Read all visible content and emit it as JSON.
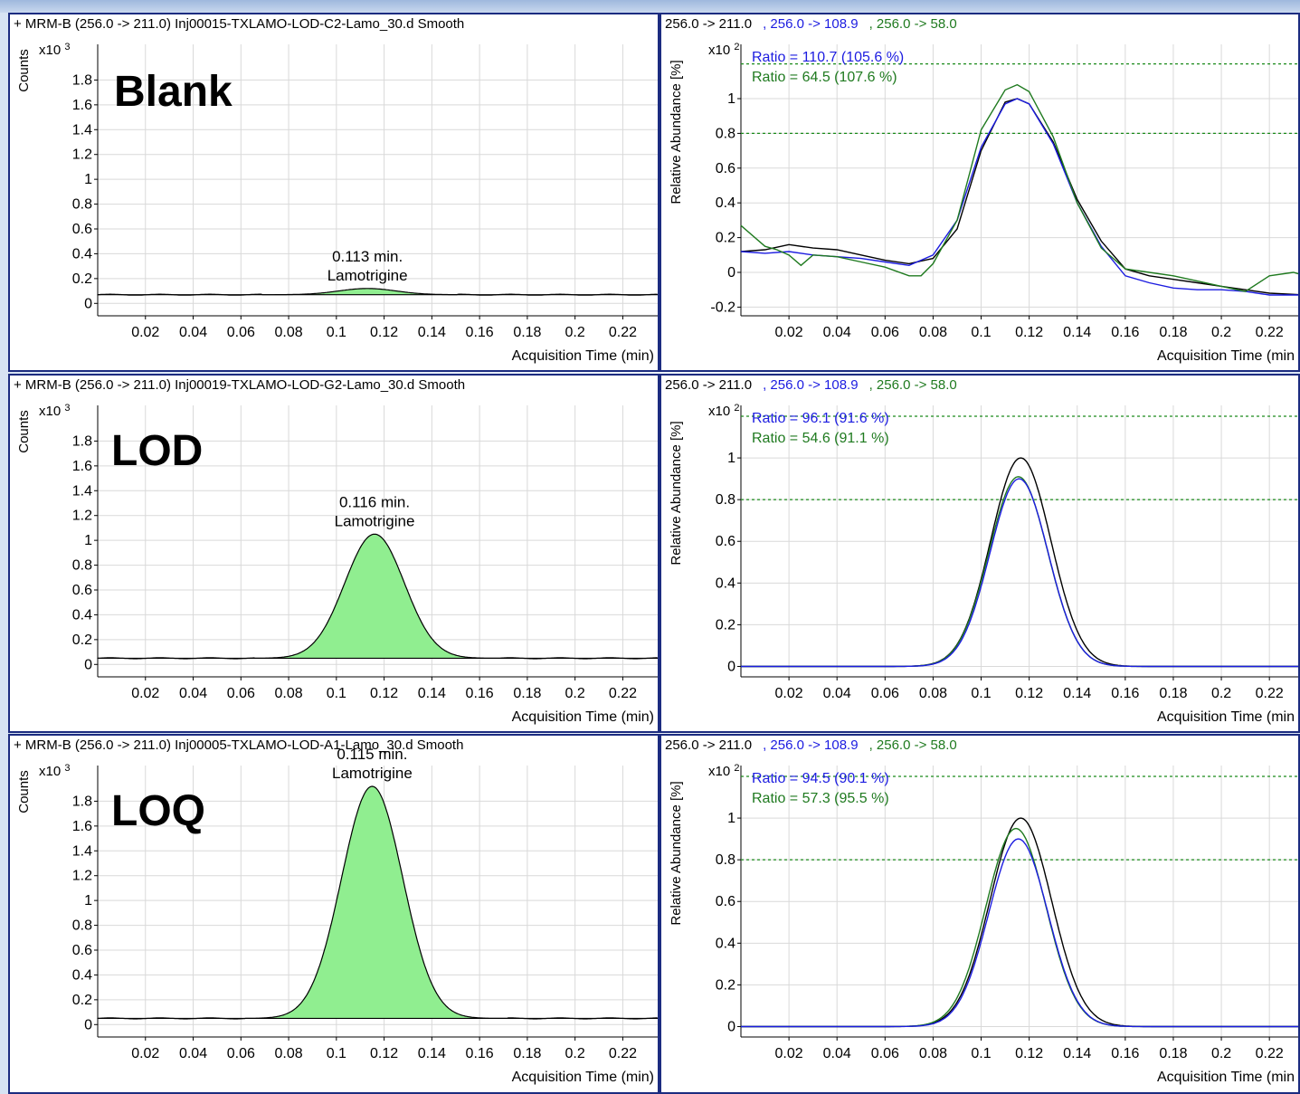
{
  "colors": {
    "panel_border": "#1c2c80",
    "grid": "#d9d9d9",
    "fill_green": "#90ee90",
    "trace_black": "#000000",
    "trace_blue": "#1c1ce0",
    "trace_green": "#1f7a1f",
    "ratio_line": "#1a8a1a"
  },
  "chart_data": [
    {
      "type": "area",
      "sample_label": "Blank",
      "title": "+ MRM-B (256.0 -> 211.0) Inj00015-TXLAMO-LOD-C2-Lamo_30.d  Smooth",
      "ylabel": "Counts",
      "y_multiplier": "x10 3",
      "xlabel": "Acquisition Time (min)",
      "xlim": [
        0.0,
        0.235
      ],
      "ylim": [
        -0.1,
        2.0
      ],
      "x_ticks": [
        0.02,
        0.04,
        0.06,
        0.08,
        0.1,
        0.12,
        0.14,
        0.16,
        0.18,
        0.2,
        0.22
      ],
      "x_tick_labels": [
        "0.02",
        "0.04",
        "0.06",
        "0.08",
        "0.1",
        "0.12",
        "0.14",
        "0.16",
        "0.18",
        "0.2",
        "0.22"
      ],
      "y_ticks": [
        0,
        0.2,
        0.4,
        0.6,
        0.8,
        1,
        1.2,
        1.4,
        1.6,
        1.8
      ],
      "y_tick_labels": [
        "0",
        "0.2",
        "0.4",
        "0.6",
        "0.8",
        "1",
        "1.2",
        "1.4",
        "1.6",
        "1.8"
      ],
      "baseline": 0.07,
      "peak": {
        "rt": 0.113,
        "apex": 0.12,
        "start": 0.075,
        "end": 0.145,
        "sigma": 0.012
      },
      "annotation": [
        "0.113 min.",
        "Lamotrigine"
      ]
    },
    {
      "type": "line",
      "title_series": [
        "256.0 -> 211.0",
        ", 256.0 -> 108.9",
        ", 256.0 -> 58.0"
      ],
      "ylabel": "Relative Abundance [%]",
      "y_multiplier": "x10 2",
      "xlabel": "Acquisition Time (min",
      "xlim": [
        0.0,
        0.235
      ],
      "ylim": [
        -0.25,
        1.25
      ],
      "x_ticks": [
        0.02,
        0.04,
        0.06,
        0.08,
        0.1,
        0.12,
        0.14,
        0.16,
        0.18,
        0.2,
        0.22
      ],
      "x_tick_labels": [
        "0.02",
        "0.04",
        "0.06",
        "0.08",
        "0.1",
        "0.12",
        "0.14",
        "0.16",
        "0.18",
        "0.2",
        "0.22"
      ],
      "y_ticks": [
        -0.2,
        0,
        0.2,
        0.4,
        0.6,
        0.8,
        1
      ],
      "y_tick_labels": [
        "-0.2",
        "0",
        "0.2",
        "0.4",
        "0.6",
        "0.8",
        "1"
      ],
      "ratio_lines": [
        1.2,
        0.8
      ],
      "ratios": [
        "Ratio = 110.7 (105.6 %)",
        "Ratio = 64.5 (107.6 %)"
      ],
      "series": [
        {
          "color": "#000000",
          "x": [
            0,
            0.01,
            0.02,
            0.03,
            0.04,
            0.05,
            0.06,
            0.07,
            0.08,
            0.09,
            0.1,
            0.11,
            0.115,
            0.12,
            0.13,
            0.14,
            0.15,
            0.16,
            0.17,
            0.18,
            0.19,
            0.2,
            0.21,
            0.22,
            0.235
          ],
          "y": [
            0.12,
            0.13,
            0.16,
            0.14,
            0.13,
            0.1,
            0.07,
            0.05,
            0.08,
            0.25,
            0.7,
            0.98,
            1.0,
            0.97,
            0.75,
            0.42,
            0.18,
            0.02,
            -0.02,
            -0.04,
            -0.06,
            -0.08,
            -0.1,
            -0.12,
            -0.13
          ]
        },
        {
          "color": "#1c1ce0",
          "x": [
            0,
            0.01,
            0.02,
            0.03,
            0.04,
            0.05,
            0.06,
            0.07,
            0.08,
            0.09,
            0.1,
            0.11,
            0.115,
            0.12,
            0.13,
            0.14,
            0.15,
            0.16,
            0.17,
            0.18,
            0.19,
            0.2,
            0.21,
            0.22,
            0.235
          ],
          "y": [
            0.12,
            0.11,
            0.12,
            0.1,
            0.09,
            0.08,
            0.06,
            0.04,
            0.1,
            0.3,
            0.72,
            0.97,
            1.0,
            0.97,
            0.74,
            0.4,
            0.15,
            -0.02,
            -0.06,
            -0.09,
            -0.1,
            -0.1,
            -0.11,
            -0.13,
            -0.13
          ]
        },
        {
          "color": "#1f7a1f",
          "x": [
            0,
            0.01,
            0.015,
            0.02,
            0.025,
            0.03,
            0.04,
            0.05,
            0.06,
            0.07,
            0.075,
            0.08,
            0.09,
            0.1,
            0.11,
            0.115,
            0.12,
            0.13,
            0.14,
            0.15,
            0.16,
            0.17,
            0.18,
            0.19,
            0.2,
            0.21,
            0.22,
            0.23,
            0.235
          ],
          "y": [
            0.27,
            0.15,
            0.13,
            0.1,
            0.04,
            0.1,
            0.09,
            0.06,
            0.03,
            -0.02,
            -0.02,
            0.05,
            0.3,
            0.82,
            1.05,
            1.08,
            1.04,
            0.78,
            0.4,
            0.14,
            0.02,
            0.0,
            -0.02,
            -0.05,
            -0.08,
            -0.11,
            -0.02,
            0.0,
            -0.02
          ]
        }
      ]
    },
    {
      "type": "area",
      "sample_label": "LOD",
      "title": "+ MRM-B (256.0 -> 211.0) Inj00019-TXLAMO-LOD-G2-Lamo_30.d  Smooth",
      "ylabel": "Counts",
      "y_multiplier": "x10 3",
      "xlabel": "Acquisition Time (min)",
      "xlim": [
        0.0,
        0.235
      ],
      "ylim": [
        -0.1,
        2.0
      ],
      "x_ticks": [
        0.02,
        0.04,
        0.06,
        0.08,
        0.1,
        0.12,
        0.14,
        0.16,
        0.18,
        0.2,
        0.22
      ],
      "x_tick_labels": [
        "0.02",
        "0.04",
        "0.06",
        "0.08",
        "0.1",
        "0.12",
        "0.14",
        "0.16",
        "0.18",
        "0.2",
        "0.22"
      ],
      "y_ticks": [
        0,
        0.2,
        0.4,
        0.6,
        0.8,
        1,
        1.2,
        1.4,
        1.6,
        1.8
      ],
      "y_tick_labels": [
        "0",
        "0.2",
        "0.4",
        "0.6",
        "0.8",
        "1",
        "1.2",
        "1.4",
        "1.6",
        "1.8"
      ],
      "baseline": 0.05,
      "peak": {
        "rt": 0.116,
        "apex": 1.05,
        "start": 0.072,
        "end": 0.163,
        "sigma": 0.0125
      },
      "annotation": [
        "0.116 min.",
        "Lamotrigine"
      ]
    },
    {
      "type": "line",
      "title_series": [
        "256.0 -> 211.0",
        ", 256.0 -> 108.9",
        ", 256.0 -> 58.0"
      ],
      "ylabel": "Relative Abundance [%]",
      "y_multiplier": "x10 2",
      "xlabel": "Acquisition Time (min",
      "xlim": [
        0.0,
        0.235
      ],
      "ylim": [
        -0.05,
        1.2
      ],
      "x_ticks": [
        0.02,
        0.04,
        0.06,
        0.08,
        0.1,
        0.12,
        0.14,
        0.16,
        0.18,
        0.2,
        0.22
      ],
      "x_tick_labels": [
        "0.02",
        "0.04",
        "0.06",
        "0.08",
        "0.1",
        "0.12",
        "0.14",
        "0.16",
        "0.18",
        "0.2",
        "0.22"
      ],
      "y_ticks": [
        0,
        0.2,
        0.4,
        0.6,
        0.8,
        1
      ],
      "y_tick_labels": [
        "0",
        "0.2",
        "0.4",
        "0.6",
        "0.8",
        "1"
      ],
      "ratio_lines": [
        1.2,
        0.8
      ],
      "ratios": [
        "Ratio = 96.1 (91.6 %)",
        "Ratio = 54.6 (91.1 %)"
      ],
      "series": [
        {
          "color": "#000000",
          "peak": {
            "center": 0.1165,
            "height": 1.0,
            "sigma": 0.0125,
            "baseline": 0.0
          }
        },
        {
          "color": "#1f7a1f",
          "peak": {
            "center": 0.1155,
            "height": 0.91,
            "sigma": 0.0122,
            "baseline": 0.0
          }
        },
        {
          "color": "#1c1ce0",
          "peak": {
            "center": 0.1158,
            "height": 0.9,
            "sigma": 0.0121,
            "baseline": 0.0
          }
        }
      ]
    },
    {
      "type": "area",
      "sample_label": "LOQ",
      "title": "+ MRM-B (256.0 -> 211.0) Inj00005-TXLAMO-LOD-A1-Lamo_30.d  Smooth",
      "ylabel": "Counts",
      "y_multiplier": "x10 3",
      "xlabel": "Acquisition Time (min)",
      "xlim": [
        0.0,
        0.235
      ],
      "ylim": [
        -0.1,
        2.0
      ],
      "x_ticks": [
        0.02,
        0.04,
        0.06,
        0.08,
        0.1,
        0.12,
        0.14,
        0.16,
        0.18,
        0.2,
        0.22
      ],
      "x_tick_labels": [
        "0.02",
        "0.04",
        "0.06",
        "0.08",
        "0.1",
        "0.12",
        "0.14",
        "0.16",
        "0.18",
        "0.2",
        "0.22"
      ],
      "y_ticks": [
        0,
        0.2,
        0.4,
        0.6,
        0.8,
        1,
        1.2,
        1.4,
        1.6,
        1.8
      ],
      "y_tick_labels": [
        "0",
        "0.2",
        "0.4",
        "0.6",
        "0.8",
        "1",
        "1.2",
        "1.4",
        "1.6",
        "1.8"
      ],
      "baseline": 0.05,
      "peak": {
        "rt": 0.115,
        "apex": 1.92,
        "start": 0.068,
        "end": 0.166,
        "sigma": 0.0128
      },
      "annotation": [
        "0.115 min.",
        "Lamotrigine"
      ]
    },
    {
      "type": "line",
      "title_series": [
        "256.0 -> 211.0",
        ", 256.0 -> 108.9",
        ", 256.0 -> 58.0"
      ],
      "ylabel": "Relative Abundance [%]",
      "y_multiplier": "x10 2",
      "xlabel": "Acquisition Time (min",
      "xlim": [
        0.0,
        0.235
      ],
      "ylim": [
        -0.05,
        1.2
      ],
      "x_ticks": [
        0.02,
        0.04,
        0.06,
        0.08,
        0.1,
        0.12,
        0.14,
        0.16,
        0.18,
        0.2,
        0.22
      ],
      "x_tick_labels": [
        "0.02",
        "0.04",
        "0.06",
        "0.08",
        "0.1",
        "0.12",
        "0.14",
        "0.16",
        "0.18",
        "0.2",
        "0.22"
      ],
      "y_ticks": [
        0,
        0.2,
        0.4,
        0.6,
        0.8,
        1
      ],
      "y_tick_labels": [
        "0",
        "0.2",
        "0.4",
        "0.6",
        "0.8",
        "1"
      ],
      "ratio_lines": [
        1.2,
        0.8
      ],
      "ratios": [
        "Ratio = 94.5 (90.1 %)",
        "Ratio = 57.3 (95.5 %)"
      ],
      "series": [
        {
          "color": "#000000",
          "peak": {
            "center": 0.1165,
            "height": 1.0,
            "sigma": 0.0128,
            "baseline": 0.0
          }
        },
        {
          "color": "#1f7a1f",
          "peak": {
            "center": 0.1145,
            "height": 0.95,
            "sigma": 0.0125,
            "baseline": 0.0
          }
        },
        {
          "color": "#1c1ce0",
          "peak": {
            "center": 0.1155,
            "height": 0.9,
            "sigma": 0.0123,
            "baseline": 0.0
          }
        }
      ]
    }
  ]
}
